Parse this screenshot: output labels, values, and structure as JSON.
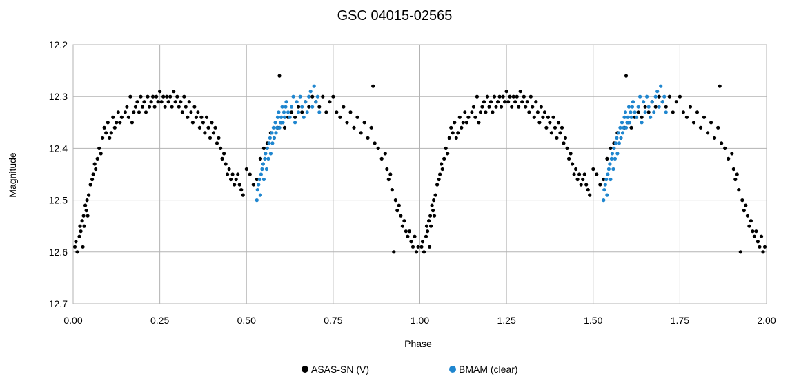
{
  "chart_data": {
    "type": "scatter",
    "title": "GSC 04015-02565",
    "xlabel": "Phase",
    "ylabel": "Magnitude",
    "xlim": [
      0,
      2
    ],
    "ylim": [
      12.7,
      12.2
    ],
    "y_inverted": true,
    "grid": true,
    "legend_position": "bottom",
    "x_ticks": [
      "0.00",
      "0.25",
      "0.50",
      "0.75",
      "1.00",
      "1.25",
      "1.50",
      "1.75",
      "2.00"
    ],
    "x_tick_values": [
      0,
      0.25,
      0.5,
      0.75,
      1.0,
      1.25,
      1.5,
      1.75,
      2.0
    ],
    "y_ticks": [
      "12.2",
      "12.3",
      "12.4",
      "12.5",
      "12.6",
      "12.7"
    ],
    "y_tick_values": [
      12.2,
      12.3,
      12.4,
      12.5,
      12.6,
      12.7
    ],
    "series": [
      {
        "name": "ASAS-SN (V)",
        "color": "#000000",
        "phase_period": 1.0,
        "points": [
          [
            0.005,
            12.59
          ],
          [
            0.008,
            12.58
          ],
          [
            0.012,
            12.6
          ],
          [
            0.018,
            12.57
          ],
          [
            0.02,
            12.55
          ],
          [
            0.022,
            12.56
          ],
          [
            0.026,
            12.54
          ],
          [
            0.028,
            12.59
          ],
          [
            0.03,
            12.53
          ],
          [
            0.032,
            12.55
          ],
          [
            0.035,
            12.51
          ],
          [
            0.038,
            12.52
          ],
          [
            0.04,
            12.5
          ],
          [
            0.042,
            12.53
          ],
          [
            0.045,
            12.49
          ],
          [
            0.05,
            12.47
          ],
          [
            0.055,
            12.46
          ],
          [
            0.058,
            12.45
          ],
          [
            0.062,
            12.43
          ],
          [
            0.065,
            12.44
          ],
          [
            0.07,
            12.42
          ],
          [
            0.075,
            12.4
          ],
          [
            0.08,
            12.41
          ],
          [
            0.085,
            12.38
          ],
          [
            0.09,
            12.36
          ],
          [
            0.095,
            12.37
          ],
          [
            0.1,
            12.35
          ],
          [
            0.105,
            12.38
          ],
          [
            0.11,
            12.37
          ],
          [
            0.115,
            12.34
          ],
          [
            0.12,
            12.36
          ],
          [
            0.125,
            12.35
          ],
          [
            0.13,
            12.33
          ],
          [
            0.135,
            12.35
          ],
          [
            0.14,
            12.34
          ],
          [
            0.15,
            12.33
          ],
          [
            0.155,
            12.32
          ],
          [
            0.16,
            12.34
          ],
          [
            0.165,
            12.3
          ],
          [
            0.17,
            12.35
          ],
          [
            0.175,
            12.33
          ],
          [
            0.18,
            12.32
          ],
          [
            0.185,
            12.31
          ],
          [
            0.19,
            12.33
          ],
          [
            0.195,
            12.3
          ],
          [
            0.2,
            12.32
          ],
          [
            0.205,
            12.31
          ],
          [
            0.21,
            12.33
          ],
          [
            0.215,
            12.3
          ],
          [
            0.22,
            12.32
          ],
          [
            0.225,
            12.31
          ],
          [
            0.23,
            12.3
          ],
          [
            0.235,
            12.32
          ],
          [
            0.24,
            12.3
          ],
          [
            0.245,
            12.31
          ],
          [
            0.25,
            12.29
          ],
          [
            0.255,
            12.31
          ],
          [
            0.26,
            12.3
          ],
          [
            0.265,
            12.32
          ],
          [
            0.27,
            12.3
          ],
          [
            0.275,
            12.31
          ],
          [
            0.28,
            12.3
          ],
          [
            0.285,
            12.32
          ],
          [
            0.29,
            12.29
          ],
          [
            0.295,
            12.31
          ],
          [
            0.3,
            12.3
          ],
          [
            0.305,
            12.32
          ],
          [
            0.31,
            12.31
          ],
          [
            0.315,
            12.33
          ],
          [
            0.32,
            12.3
          ],
          [
            0.325,
            12.32
          ],
          [
            0.33,
            12.34
          ],
          [
            0.335,
            12.31
          ],
          [
            0.34,
            12.33
          ],
          [
            0.345,
            12.35
          ],
          [
            0.35,
            12.32
          ],
          [
            0.355,
            12.34
          ],
          [
            0.36,
            12.33
          ],
          [
            0.365,
            12.36
          ],
          [
            0.37,
            12.34
          ],
          [
            0.375,
            12.35
          ],
          [
            0.38,
            12.37
          ],
          [
            0.385,
            12.34
          ],
          [
            0.39,
            12.36
          ],
          [
            0.395,
            12.38
          ],
          [
            0.4,
            12.35
          ],
          [
            0.405,
            12.37
          ],
          [
            0.41,
            12.36
          ],
          [
            0.415,
            12.39
          ],
          [
            0.42,
            12.38
          ],
          [
            0.425,
            12.4
          ],
          [
            0.43,
            12.42
          ],
          [
            0.435,
            12.41
          ],
          [
            0.44,
            12.43
          ],
          [
            0.445,
            12.45
          ],
          [
            0.45,
            12.44
          ],
          [
            0.455,
            12.46
          ],
          [
            0.46,
            12.45
          ],
          [
            0.465,
            12.47
          ],
          [
            0.47,
            12.46
          ],
          [
            0.475,
            12.45
          ],
          [
            0.48,
            12.47
          ],
          [
            0.485,
            12.48
          ],
          [
            0.49,
            12.49
          ],
          [
            0.5,
            12.44
          ],
          [
            0.51,
            12.45
          ],
          [
            0.52,
            12.47
          ],
          [
            0.53,
            12.46
          ],
          [
            0.54,
            12.42
          ],
          [
            0.55,
            12.4
          ],
          [
            0.56,
            12.39
          ],
          [
            0.57,
            12.37
          ],
          [
            0.58,
            12.38
          ],
          [
            0.59,
            12.36
          ],
          [
            0.595,
            12.26
          ],
          [
            0.6,
            12.35
          ],
          [
            0.61,
            12.36
          ],
          [
            0.62,
            12.34
          ],
          [
            0.63,
            12.33
          ],
          [
            0.64,
            12.34
          ],
          [
            0.65,
            12.32
          ],
          [
            0.66,
            12.33
          ],
          [
            0.67,
            12.31
          ],
          [
            0.68,
            12.32
          ],
          [
            0.69,
            12.3
          ],
          [
            0.7,
            12.31
          ],
          [
            0.71,
            12.32
          ],
          [
            0.72,
            12.3
          ],
          [
            0.73,
            12.33
          ],
          [
            0.74,
            12.31
          ],
          [
            0.75,
            12.3
          ],
          [
            0.76,
            12.33
          ],
          [
            0.77,
            12.34
          ],
          [
            0.78,
            12.32
          ],
          [
            0.79,
            12.35
          ],
          [
            0.8,
            12.33
          ],
          [
            0.81,
            12.36
          ],
          [
            0.82,
            12.34
          ],
          [
            0.83,
            12.37
          ],
          [
            0.84,
            12.35
          ],
          [
            0.85,
            12.38
          ],
          [
            0.86,
            12.36
          ],
          [
            0.865,
            12.28
          ],
          [
            0.87,
            12.39
          ],
          [
            0.88,
            12.4
          ],
          [
            0.89,
            12.42
          ],
          [
            0.9,
            12.41
          ],
          [
            0.905,
            12.44
          ],
          [
            0.91,
            12.46
          ],
          [
            0.915,
            12.45
          ],
          [
            0.92,
            12.48
          ],
          [
            0.925,
            12.6
          ],
          [
            0.93,
            12.5
          ],
          [
            0.935,
            12.52
          ],
          [
            0.94,
            12.51
          ],
          [
            0.945,
            12.53
          ],
          [
            0.95,
            12.55
          ],
          [
            0.955,
            12.54
          ],
          [
            0.96,
            12.56
          ],
          [
            0.965,
            12.57
          ],
          [
            0.97,
            12.56
          ],
          [
            0.975,
            12.58
          ],
          [
            0.98,
            12.59
          ],
          [
            0.985,
            12.57
          ],
          [
            0.99,
            12.6
          ],
          [
            0.995,
            12.59
          ]
        ]
      },
      {
        "name": "BMAM (clear)",
        "color": "#1f86cf",
        "phase_period": 1.0,
        "points": [
          [
            0.53,
            12.5
          ],
          [
            0.532,
            12.48
          ],
          [
            0.535,
            12.47
          ],
          [
            0.538,
            12.46
          ],
          [
            0.54,
            12.49
          ],
          [
            0.542,
            12.45
          ],
          [
            0.545,
            12.44
          ],
          [
            0.548,
            12.43
          ],
          [
            0.55,
            12.46
          ],
          [
            0.553,
            12.42
          ],
          [
            0.555,
            12.41
          ],
          [
            0.558,
            12.44
          ],
          [
            0.56,
            12.4
          ],
          [
            0.563,
            12.42
          ],
          [
            0.565,
            12.39
          ],
          [
            0.568,
            12.38
          ],
          [
            0.57,
            12.41
          ],
          [
            0.573,
            12.37
          ],
          [
            0.575,
            12.39
          ],
          [
            0.578,
            12.36
          ],
          [
            0.58,
            12.38
          ],
          [
            0.583,
            12.35
          ],
          [
            0.585,
            12.37
          ],
          [
            0.588,
            12.36
          ],
          [
            0.59,
            12.34
          ],
          [
            0.593,
            12.33
          ],
          [
            0.595,
            12.36
          ],
          [
            0.598,
            12.35
          ],
          [
            0.6,
            12.34
          ],
          [
            0.603,
            12.32
          ],
          [
            0.605,
            12.35
          ],
          [
            0.608,
            12.33
          ],
          [
            0.61,
            12.34
          ],
          [
            0.613,
            12.32
          ],
          [
            0.615,
            12.31
          ],
          [
            0.62,
            12.33
          ],
          [
            0.625,
            12.34
          ],
          [
            0.63,
            12.32
          ],
          [
            0.635,
            12.3
          ],
          [
            0.64,
            12.35
          ],
          [
            0.645,
            12.31
          ],
          [
            0.65,
            12.33
          ],
          [
            0.655,
            12.3
          ],
          [
            0.66,
            12.32
          ],
          [
            0.665,
            12.34
          ],
          [
            0.67,
            12.31
          ],
          [
            0.675,
            12.33
          ],
          [
            0.68,
            12.3
          ],
          [
            0.685,
            12.29
          ],
          [
            0.69,
            12.32
          ],
          [
            0.695,
            12.28
          ],
          [
            0.7,
            12.31
          ],
          [
            0.705,
            12.3
          ],
          [
            0.71,
            12.33
          ]
        ]
      }
    ]
  }
}
